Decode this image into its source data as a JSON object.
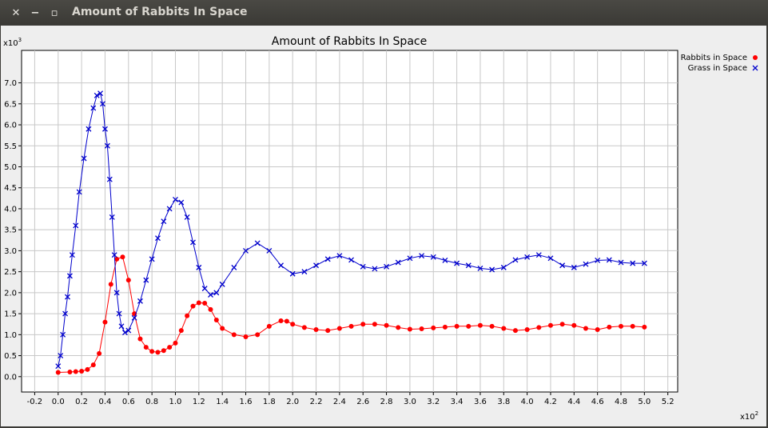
{
  "window": {
    "title": "Amount of Rabbits In Space",
    "close_icon": "close-icon",
    "minimize_icon": "minimize-icon",
    "maximize_icon": "maximize-icon"
  },
  "chart_data": {
    "type": "scatter",
    "title": "Amount of Rabbits In Space",
    "xlabel": "",
    "ylabel": "",
    "x_multiplier_label": "x10",
    "x_multiplier_exp": "2",
    "y_multiplier_label": "x10",
    "y_multiplier_exp": "3",
    "xlim": [
      -0.2,
      5.2
    ],
    "ylim": [
      0.0,
      7.0
    ],
    "x_ticks": [
      "-0.2",
      "0.0",
      "0.2",
      "0.4",
      "0.6",
      "0.8",
      "1.0",
      "1.2",
      "1.4",
      "1.6",
      "1.8",
      "2.0",
      "2.2",
      "2.4",
      "2.6",
      "2.8",
      "3.0",
      "3.2",
      "3.4",
      "3.6",
      "3.8",
      "4.0",
      "4.2",
      "4.4",
      "4.6",
      "4.8",
      "5.0",
      "5.2"
    ],
    "y_ticks": [
      "0.0",
      "0.5",
      "1.0",
      "1.5",
      "2.0",
      "2.5",
      "3.0",
      "3.5",
      "4.0",
      "4.5",
      "5.0",
      "5.5",
      "6.0",
      "6.5",
      "7.0"
    ],
    "grid": true,
    "legend_position": "top-right",
    "series": [
      {
        "name": "Rabbits in Space",
        "color": "#ff0000",
        "marker": "circle",
        "points": [
          [
            0.0,
            0.1
          ],
          [
            0.1,
            0.11
          ],
          [
            0.15,
            0.12
          ],
          [
            0.2,
            0.13
          ],
          [
            0.25,
            0.17
          ],
          [
            0.3,
            0.28
          ],
          [
            0.35,
            0.55
          ],
          [
            0.4,
            1.3
          ],
          [
            0.45,
            2.2
          ],
          [
            0.5,
            2.8
          ],
          [
            0.55,
            2.85
          ],
          [
            0.6,
            2.3
          ],
          [
            0.65,
            1.5
          ],
          [
            0.7,
            0.9
          ],
          [
            0.75,
            0.7
          ],
          [
            0.8,
            0.6
          ],
          [
            0.85,
            0.58
          ],
          [
            0.9,
            0.62
          ],
          [
            0.95,
            0.7
          ],
          [
            1.0,
            0.8
          ],
          [
            1.05,
            1.1
          ],
          [
            1.1,
            1.45
          ],
          [
            1.15,
            1.68
          ],
          [
            1.2,
            1.76
          ],
          [
            1.25,
            1.75
          ],
          [
            1.3,
            1.6
          ],
          [
            1.35,
            1.35
          ],
          [
            1.4,
            1.15
          ],
          [
            1.5,
            1.0
          ],
          [
            1.6,
            0.95
          ],
          [
            1.7,
            1.0
          ],
          [
            1.8,
            1.2
          ],
          [
            1.9,
            1.33
          ],
          [
            1.95,
            1.32
          ],
          [
            2.0,
            1.25
          ],
          [
            2.1,
            1.17
          ],
          [
            2.2,
            1.12
          ],
          [
            2.3,
            1.1
          ],
          [
            2.4,
            1.15
          ],
          [
            2.5,
            1.2
          ],
          [
            2.6,
            1.25
          ],
          [
            2.7,
            1.25
          ],
          [
            2.8,
            1.22
          ],
          [
            2.9,
            1.17
          ],
          [
            3.0,
            1.13
          ],
          [
            3.1,
            1.14
          ],
          [
            3.2,
            1.16
          ],
          [
            3.3,
            1.18
          ],
          [
            3.4,
            1.2
          ],
          [
            3.5,
            1.2
          ],
          [
            3.6,
            1.22
          ],
          [
            3.7,
            1.2
          ],
          [
            3.8,
            1.15
          ],
          [
            3.9,
            1.1
          ],
          [
            4.0,
            1.12
          ],
          [
            4.1,
            1.17
          ],
          [
            4.2,
            1.22
          ],
          [
            4.3,
            1.25
          ],
          [
            4.4,
            1.22
          ],
          [
            4.5,
            1.15
          ],
          [
            4.6,
            1.12
          ],
          [
            4.7,
            1.18
          ],
          [
            4.8,
            1.2
          ],
          [
            4.9,
            1.2
          ],
          [
            5.0,
            1.18
          ]
        ]
      },
      {
        "name": "Grass in Space",
        "color": "#0000cc",
        "marker": "x",
        "points": [
          [
            0.0,
            0.25
          ],
          [
            0.02,
            0.5
          ],
          [
            0.04,
            1.0
          ],
          [
            0.06,
            1.5
          ],
          [
            0.08,
            1.9
          ],
          [
            0.1,
            2.4
          ],
          [
            0.12,
            2.9
          ],
          [
            0.15,
            3.6
          ],
          [
            0.18,
            4.4
          ],
          [
            0.22,
            5.2
          ],
          [
            0.26,
            5.9
          ],
          [
            0.3,
            6.4
          ],
          [
            0.33,
            6.7
          ],
          [
            0.36,
            6.75
          ],
          [
            0.38,
            6.5
          ],
          [
            0.4,
            5.9
          ],
          [
            0.42,
            5.5
          ],
          [
            0.44,
            4.7
          ],
          [
            0.46,
            3.8
          ],
          [
            0.48,
            2.9
          ],
          [
            0.5,
            2.0
          ],
          [
            0.52,
            1.5
          ],
          [
            0.54,
            1.2
          ],
          [
            0.57,
            1.05
          ],
          [
            0.6,
            1.1
          ],
          [
            0.65,
            1.4
          ],
          [
            0.7,
            1.8
          ],
          [
            0.75,
            2.3
          ],
          [
            0.8,
            2.8
          ],
          [
            0.85,
            3.3
          ],
          [
            0.9,
            3.7
          ],
          [
            0.95,
            4.0
          ],
          [
            1.0,
            4.22
          ],
          [
            1.05,
            4.15
          ],
          [
            1.1,
            3.8
          ],
          [
            1.15,
            3.2
          ],
          [
            1.2,
            2.6
          ],
          [
            1.25,
            2.1
          ],
          [
            1.3,
            1.95
          ],
          [
            1.35,
            2.0
          ],
          [
            1.4,
            2.2
          ],
          [
            1.5,
            2.6
          ],
          [
            1.6,
            3.0
          ],
          [
            1.7,
            3.18
          ],
          [
            1.8,
            3.0
          ],
          [
            1.9,
            2.65
          ],
          [
            2.0,
            2.45
          ],
          [
            2.1,
            2.5
          ],
          [
            2.2,
            2.65
          ],
          [
            2.3,
            2.8
          ],
          [
            2.4,
            2.88
          ],
          [
            2.5,
            2.78
          ],
          [
            2.6,
            2.62
          ],
          [
            2.7,
            2.57
          ],
          [
            2.8,
            2.62
          ],
          [
            2.9,
            2.72
          ],
          [
            3.0,
            2.82
          ],
          [
            3.1,
            2.88
          ],
          [
            3.2,
            2.85
          ],
          [
            3.3,
            2.77
          ],
          [
            3.4,
            2.7
          ],
          [
            3.5,
            2.65
          ],
          [
            3.6,
            2.58
          ],
          [
            3.7,
            2.55
          ],
          [
            3.8,
            2.6
          ],
          [
            3.9,
            2.78
          ],
          [
            4.0,
            2.85
          ],
          [
            4.1,
            2.9
          ],
          [
            4.2,
            2.82
          ],
          [
            4.3,
            2.65
          ],
          [
            4.4,
            2.6
          ],
          [
            4.5,
            2.68
          ],
          [
            4.6,
            2.77
          ],
          [
            4.7,
            2.78
          ],
          [
            4.8,
            2.72
          ],
          [
            4.9,
            2.7
          ],
          [
            5.0,
            2.7
          ]
        ]
      }
    ]
  }
}
